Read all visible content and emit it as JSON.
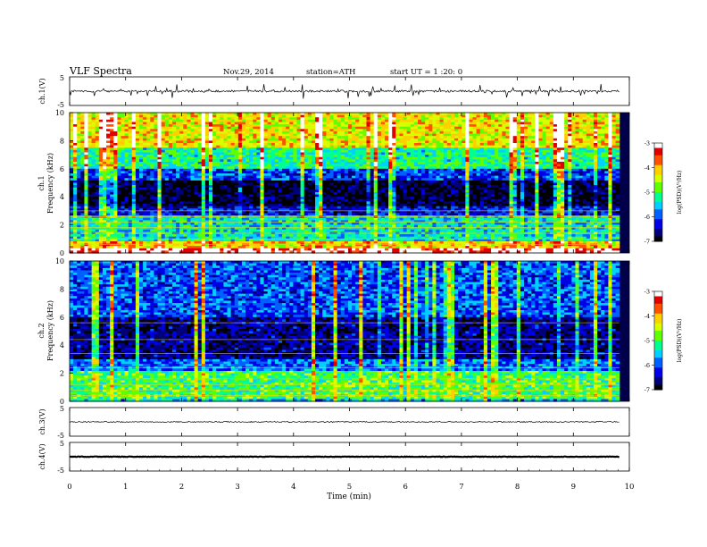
{
  "header": {
    "title": "VLF  Spectra",
    "date": "Nov.29, 2014",
    "station": "station=ATH",
    "start": "start  UT  =   1  :20: 0"
  },
  "colors": {
    "colormap": [
      "#000000",
      "#00007a",
      "#0000e6",
      "#0060ff",
      "#00d0ff",
      "#00ff90",
      "#60ff00",
      "#d8ff00",
      "#ffd000",
      "#ff5000",
      "#e00000",
      "#ffffff"
    ]
  },
  "chart_data": [
    {
      "id": "ch1-waveform",
      "type": "line",
      "ylabel": "ch.1(V)",
      "ylim": [
        -5,
        5
      ],
      "yticks": [
        "5",
        "-5"
      ],
      "xlim": [
        0,
        10
      ],
      "duration_min": 9.82,
      "baseline": 0,
      "noise_amplitude": 0.35,
      "spikes": "frequent, up to about +/-3 V"
    },
    {
      "id": "ch1-spectrogram",
      "type": "heatmap",
      "ylabel": "Frequency  (kHz)",
      "channel_label": "ch.1",
      "ylim": [
        0,
        10
      ],
      "yticks": [
        "0",
        "2",
        "4",
        "6",
        "8",
        "10"
      ],
      "xlim": [
        0,
        10
      ],
      "duration_min": 9.82,
      "colorbar": {
        "label": "log(PSD)(V²/Hz)",
        "range": [
          -7,
          -3
        ],
        "ticks": [
          "-3",
          "-4",
          "-5",
          "-6",
          "-7"
        ]
      },
      "bands": [
        {
          "fmin": 0.0,
          "fmax": 0.3,
          "level": -3.2
        },
        {
          "fmin": 0.3,
          "fmax": 0.8,
          "level": -4.2
        },
        {
          "fmin": 0.8,
          "fmax": 2.6,
          "level": -5.4
        },
        {
          "fmin": 2.6,
          "fmax": 3.3,
          "level": -6.3
        },
        {
          "fmin": 3.3,
          "fmax": 5.2,
          "level": -6.9
        },
        {
          "fmin": 5.2,
          "fmax": 6.0,
          "level": -6.1
        },
        {
          "fmin": 6.0,
          "fmax": 7.5,
          "level": -5.2
        },
        {
          "fmin": 7.5,
          "fmax": 10.0,
          "level": -4.3
        }
      ],
      "lines_khz": [
        0.6,
        1.0,
        1.4,
        1.8,
        2.2,
        2.6,
        3.0
      ],
      "broadband_events": "many vertical bursts (sferics) across all frequencies"
    },
    {
      "id": "ch2-spectrogram",
      "type": "heatmap",
      "ylabel": "Frequency  (kHz)",
      "channel_label": "ch.2",
      "ylim": [
        0,
        10
      ],
      "yticks": [
        "0",
        "2",
        "4",
        "6",
        "8",
        "10"
      ],
      "xlim": [
        0,
        10
      ],
      "duration_min": 9.82,
      "colorbar": {
        "label": "log(PSD)(V²/Hz)",
        "range": [
          -7,
          -3
        ],
        "ticks": [
          "-3",
          "-4",
          "-5",
          "-6",
          "-7"
        ]
      },
      "bands": [
        {
          "fmin": 0.0,
          "fmax": 0.2,
          "level": -5.6
        },
        {
          "fmin": 0.2,
          "fmax": 2.2,
          "level": -5.0
        },
        {
          "fmin": 2.2,
          "fmax": 3.0,
          "level": -5.9
        },
        {
          "fmin": 3.0,
          "fmax": 6.0,
          "level": -6.6
        },
        {
          "fmin": 6.0,
          "fmax": 10.0,
          "level": -6.0
        }
      ],
      "lines_khz": [
        0.4,
        0.8,
        1.2,
        1.6,
        2.4,
        3.4,
        4.4,
        5.6
      ],
      "broadband_events": "many vertical bursts (sferics) across all frequencies"
    },
    {
      "id": "ch3-waveform",
      "type": "line",
      "ylabel": "ch.3(V)",
      "ylim": [
        -5,
        5
      ],
      "yticks": [
        "5",
        "-5"
      ],
      "xlim": [
        0,
        10
      ],
      "duration_min": 9.82,
      "baseline": 0,
      "noise_amplitude": 0.2
    },
    {
      "id": "ch4-waveform",
      "type": "line",
      "ylabel": "ch.4(V)",
      "ylim": [
        -5,
        5
      ],
      "yticks": [
        "5",
        "-5"
      ],
      "xlim": [
        0,
        10
      ],
      "duration_min": 9.82,
      "baseline": 0,
      "noise_amplitude": 0.1
    }
  ],
  "x_axis": {
    "label": "Time  (min)",
    "range": [
      0,
      10
    ],
    "ticks": [
      "0",
      "1",
      "2",
      "3",
      "4",
      "5",
      "6",
      "7",
      "8",
      "9",
      "10"
    ]
  }
}
